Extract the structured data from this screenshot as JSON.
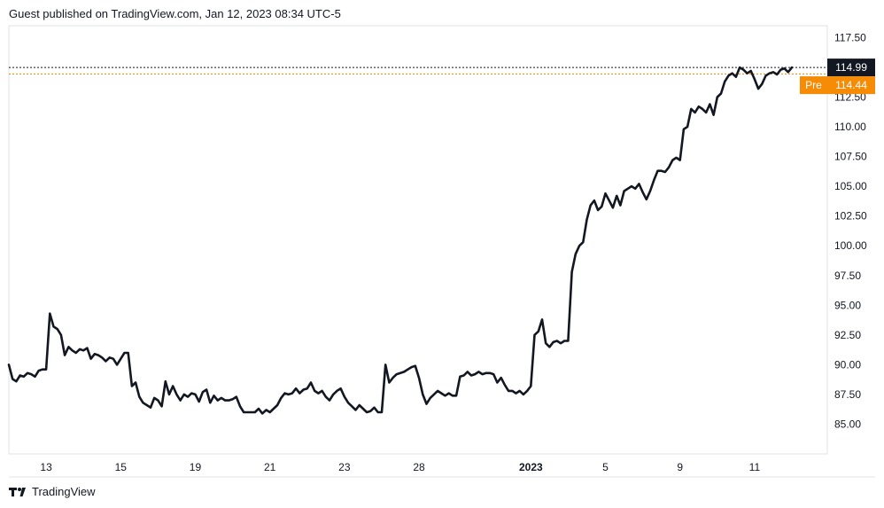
{
  "header": {
    "published": "Guest published on TradingView.com, Jan 12, 2023 08:34 UTC-5"
  },
  "footer": {
    "brand": "TradingView"
  },
  "colors": {
    "line": "#131722",
    "pre": "#f68b05",
    "last": "#131722",
    "grid": "#e0e3eb"
  },
  "chart_data": {
    "type": "line",
    "y_ticks": [
      "117.50",
      "115.00",
      "112.50",
      "110.00",
      "107.50",
      "105.00",
      "102.50",
      "100.00",
      "97.50",
      "95.00",
      "92.50",
      "90.00",
      "87.50",
      "85.00"
    ],
    "y_range": [
      82.5,
      118.5
    ],
    "x_ticks": [
      {
        "label": "13",
        "i": 10
      },
      {
        "label": "15",
        "i": 30
      },
      {
        "label": "19",
        "i": 50
      },
      {
        "label": "21",
        "i": 70
      },
      {
        "label": "23",
        "i": 90
      },
      {
        "label": "28",
        "i": 110
      },
      {
        "label": "2023",
        "i": 140,
        "bold": true
      },
      {
        "label": "5",
        "i": 160
      },
      {
        "label": "9",
        "i": 180
      },
      {
        "label": "11",
        "i": 200
      }
    ],
    "price_labels": [
      {
        "label": "",
        "value": "114.99",
        "kind": "last"
      },
      {
        "label": "Pre",
        "value": "114.44",
        "kind": "pre"
      }
    ],
    "series": [
      {
        "values": [
          90.0,
          88.8,
          88.6,
          89.1,
          89.0,
          89.3,
          89.2,
          89.0,
          89.5,
          89.6,
          89.6,
          94.3,
          93.2,
          93.0,
          92.5,
          90.8,
          91.5,
          91.2,
          91.0,
          91.3,
          91.2,
          91.4,
          90.5,
          90.9,
          90.8,
          90.6,
          90.3,
          90.6,
          90.5,
          90.0,
          90.5,
          91.0,
          91.0,
          88.2,
          88.5,
          87.3,
          86.8,
          86.6,
          86.4,
          87.2,
          87.0,
          86.5,
          88.6,
          87.5,
          88.2,
          87.5,
          87.0,
          87.5,
          87.3,
          87.6,
          87.5,
          86.9,
          87.7,
          87.9,
          86.8,
          87.4,
          87.0,
          87.2,
          87.0,
          87.0,
          87.1,
          87.3,
          86.5,
          86.0,
          86.0,
          86.0,
          86.0,
          86.3,
          85.9,
          86.2,
          86.0,
          86.3,
          86.6,
          87.2,
          87.6,
          87.5,
          87.6,
          88.0,
          87.6,
          87.9,
          88.0,
          88.5,
          87.8,
          87.6,
          87.8,
          87.3,
          87.0,
          87.5,
          87.8,
          88.0,
          87.3,
          86.8,
          86.5,
          86.2,
          86.6,
          86.3,
          86.0,
          86.1,
          86.4,
          86.0,
          86.0,
          90.0,
          88.5,
          88.9,
          89.2,
          89.3,
          89.4,
          89.6,
          89.8,
          89.9,
          88.9,
          87.5,
          86.7,
          87.2,
          87.5,
          87.8,
          87.6,
          87.4,
          87.6,
          87.4,
          87.4,
          89.0,
          89.1,
          89.4,
          89.1,
          89.2,
          89.4,
          89.2,
          89.3,
          89.3,
          89.2,
          88.5,
          88.9,
          88.3,
          87.8,
          87.8,
          87.6,
          87.8,
          87.5,
          87.8,
          88.2,
          92.5,
          92.8,
          93.8,
          91.8,
          91.5,
          91.9,
          92.0,
          91.8,
          92.0,
          92.0,
          97.8,
          99.3,
          100.0,
          100.3,
          102.2,
          103.4,
          103.8,
          103.0,
          103.3,
          104.4,
          103.8,
          103.2,
          104.2,
          103.4,
          104.6,
          104.8,
          105.0,
          104.8,
          105.2,
          104.5,
          103.9,
          104.6,
          105.5,
          106.3,
          106.3,
          106.2,
          106.6,
          107.2,
          107.4,
          107.2,
          109.8,
          110.0,
          111.5,
          111.2,
          111.7,
          111.5,
          111.2,
          111.9,
          111.0,
          112.5,
          112.8,
          113.8,
          114.3,
          114.5,
          114.2,
          114.99,
          114.8,
          114.5,
          114.7,
          114.0,
          113.2,
          113.6,
          114.3,
          114.5,
          114.6,
          114.4,
          114.8,
          114.9,
          114.6,
          114.99
        ]
      }
    ]
  }
}
